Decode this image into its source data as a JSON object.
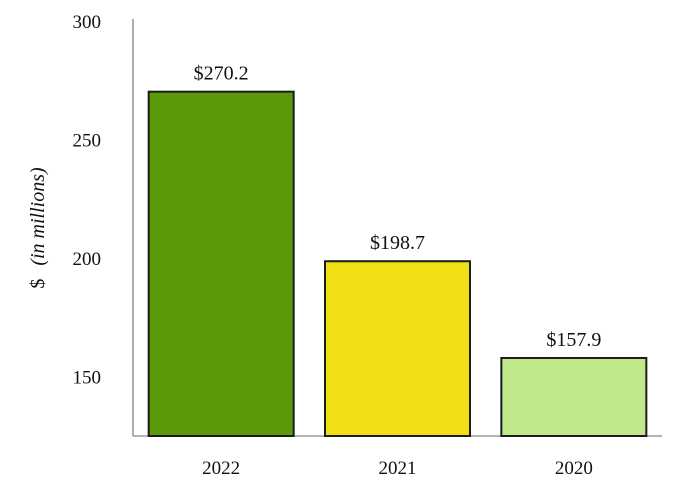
{
  "chart_data": {
    "type": "bar",
    "title": "",
    "categories": [
      "2022",
      "2021",
      "2020"
    ],
    "values": [
      270.2,
      198.7,
      157.9
    ],
    "data_labels": [
      "$270.2",
      "$198.7",
      "$157.9"
    ],
    "bar_colors": [
      "#5a9a0a",
      "#efdf14",
      "#bee88a"
    ],
    "xlabel": "",
    "ylabel_prefix": "$",
    "ylabel_italic": "(in millions)",
    "ylim": [
      125,
      300
    ],
    "yticks": [
      150,
      200,
      250,
      300
    ],
    "grid": false,
    "legend": "none"
  }
}
